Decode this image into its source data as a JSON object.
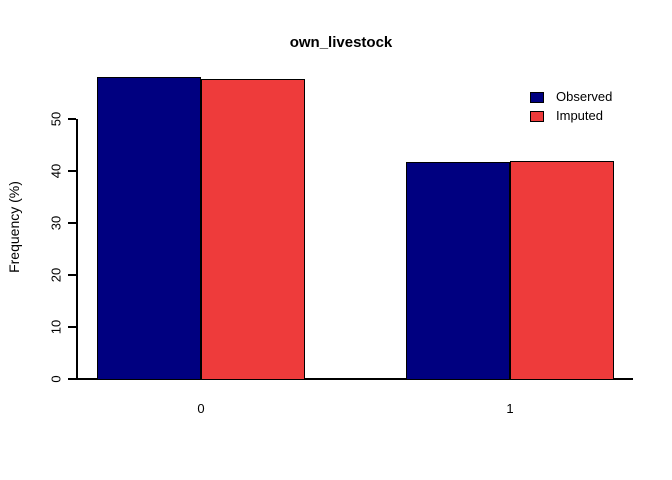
{
  "figure": {
    "background": "#FFFFFF",
    "axis_color": "#000000",
    "text_color": "#000000"
  },
  "chart_data": {
    "type": "bar",
    "title": "own_livestock",
    "xlabel": "",
    "ylabel": "Frequency (%)",
    "categories": [
      "0",
      "1"
    ],
    "series": [
      {
        "name": "Observed",
        "color": "#000080",
        "values": [
          58.1,
          41.7
        ]
      },
      {
        "name": "Imputed",
        "color": "#EE3B3B",
        "values": [
          57.8,
          41.9
        ]
      }
    ],
    "bar_border_color": "#000000",
    "yticks": [
      0,
      10,
      20,
      30,
      40,
      50
    ],
    "ylim": [
      0,
      58.1
    ],
    "grid": false,
    "legend_position": "top-right"
  }
}
